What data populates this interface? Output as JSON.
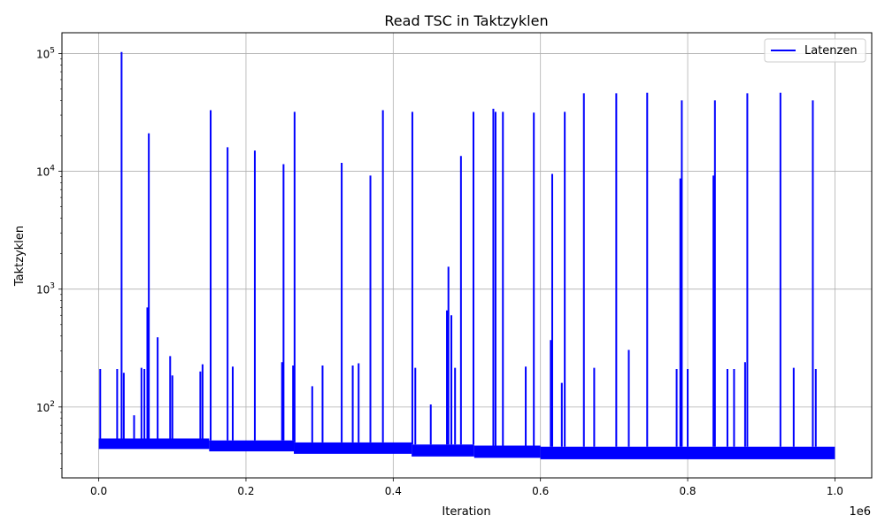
{
  "chart_data": {
    "type": "line",
    "title": "Read TSC in Taktzyklen",
    "xlabel": "Iteration",
    "ylabel": "Taktzyklen",
    "x_offset_label": "1e6",
    "xlim": [
      -50000,
      1050000
    ],
    "ylim": [
      25,
      150000
    ],
    "yscale": "log",
    "grid": true,
    "legend_position": "top-right",
    "x_ticks": [
      {
        "value": 0,
        "label": "0.0"
      },
      {
        "value": 200000,
        "label": "0.2"
      },
      {
        "value": 400000,
        "label": "0.4"
      },
      {
        "value": 600000,
        "label": "0.6"
      },
      {
        "value": 800000,
        "label": "0.8"
      },
      {
        "value": 1000000,
        "label": "1.0"
      }
    ],
    "y_ticks": [
      {
        "value": 100,
        "base": "10",
        "exp": "2"
      },
      {
        "value": 1000,
        "base": "10",
        "exp": "3"
      },
      {
        "value": 10000,
        "base": "10",
        "exp": "4"
      },
      {
        "value": 100000,
        "base": "10",
        "exp": "5"
      }
    ],
    "series": [
      {
        "name": "Latenzen",
        "color": "#0000ff",
        "baseline": [
          {
            "x_start": 0,
            "x_end": 150000,
            "low": 44,
            "high": 54
          },
          {
            "x_start": 150000,
            "x_end": 265000,
            "low": 42,
            "high": 52
          },
          {
            "x_start": 265000,
            "x_end": 425000,
            "low": 40,
            "high": 50
          },
          {
            "x_start": 425000,
            "x_end": 510000,
            "low": 38,
            "high": 48
          },
          {
            "x_start": 510000,
            "x_end": 600000,
            "low": 37,
            "high": 47
          },
          {
            "x_start": 600000,
            "x_end": 1000000,
            "low": 36,
            "high": 46
          }
        ],
        "spikes": [
          {
            "x": 2000,
            "y": 210
          },
          {
            "x": 25000,
            "y": 210
          },
          {
            "x": 31000,
            "y": 103000
          },
          {
            "x": 34000,
            "y": 195
          },
          {
            "x": 48000,
            "y": 85
          },
          {
            "x": 58000,
            "y": 215
          },
          {
            "x": 62000,
            "y": 210
          },
          {
            "x": 66000,
            "y": 700
          },
          {
            "x": 68000,
            "y": 21000
          },
          {
            "x": 80000,
            "y": 390
          },
          {
            "x": 97000,
            "y": 270
          },
          {
            "x": 100000,
            "y": 185
          },
          {
            "x": 138000,
            "y": 200
          },
          {
            "x": 141000,
            "y": 230
          },
          {
            "x": 152000,
            "y": 33000
          },
          {
            "x": 175000,
            "y": 16000
          },
          {
            "x": 182000,
            "y": 220
          },
          {
            "x": 212000,
            "y": 15000
          },
          {
            "x": 249000,
            "y": 240
          },
          {
            "x": 251000,
            "y": 11500
          },
          {
            "x": 264000,
            "y": 225
          },
          {
            "x": 266000,
            "y": 32000
          },
          {
            "x": 290000,
            "y": 150
          },
          {
            "x": 304000,
            "y": 225
          },
          {
            "x": 330000,
            "y": 11800
          },
          {
            "x": 345000,
            "y": 225
          },
          {
            "x": 353000,
            "y": 235
          },
          {
            "x": 369000,
            "y": 9200
          },
          {
            "x": 386000,
            "y": 33000
          },
          {
            "x": 426000,
            "y": 32000
          },
          {
            "x": 430000,
            "y": 215
          },
          {
            "x": 451000,
            "y": 105
          },
          {
            "x": 473000,
            "y": 660
          },
          {
            "x": 475000,
            "y": 1550
          },
          {
            "x": 479000,
            "y": 600
          },
          {
            "x": 484000,
            "y": 215
          },
          {
            "x": 492000,
            "y": 13500
          },
          {
            "x": 509000,
            "y": 32000
          },
          {
            "x": 536000,
            "y": 34000
          },
          {
            "x": 539000,
            "y": 32000
          },
          {
            "x": 549000,
            "y": 32000
          },
          {
            "x": 580000,
            "y": 220
          },
          {
            "x": 591000,
            "y": 31500
          },
          {
            "x": 614000,
            "y": 370
          },
          {
            "x": 616000,
            "y": 9500
          },
          {
            "x": 629000,
            "y": 160
          },
          {
            "x": 633000,
            "y": 32000
          },
          {
            "x": 659000,
            "y": 46000
          },
          {
            "x": 673000,
            "y": 215
          },
          {
            "x": 703000,
            "y": 46000
          },
          {
            "x": 720000,
            "y": 305
          },
          {
            "x": 745000,
            "y": 46500
          },
          {
            "x": 785000,
            "y": 210
          },
          {
            "x": 790000,
            "y": 8700
          },
          {
            "x": 792000,
            "y": 40000
          },
          {
            "x": 800000,
            "y": 210
          },
          {
            "x": 835000,
            "y": 9200
          },
          {
            "x": 837000,
            "y": 40000
          },
          {
            "x": 854000,
            "y": 210
          },
          {
            "x": 863000,
            "y": 210
          },
          {
            "x": 878000,
            "y": 240
          },
          {
            "x": 881000,
            "y": 46000
          },
          {
            "x": 926000,
            "y": 46500
          },
          {
            "x": 944000,
            "y": 215
          },
          {
            "x": 970000,
            "y": 40000
          },
          {
            "x": 974000,
            "y": 210
          }
        ]
      }
    ]
  }
}
